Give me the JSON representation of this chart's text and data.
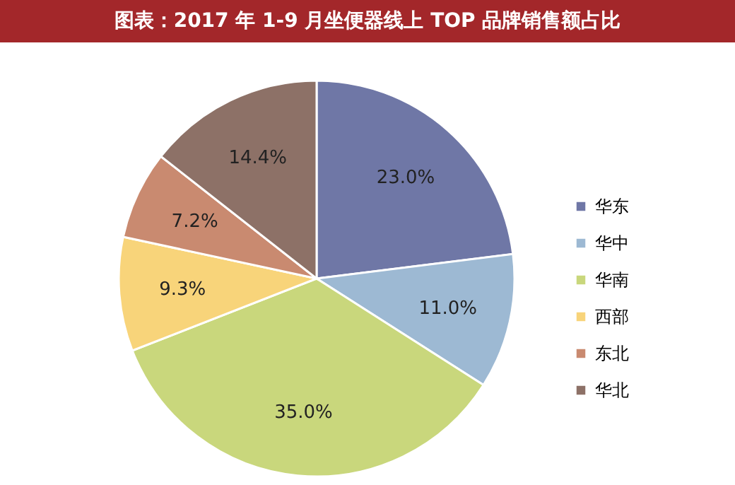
{
  "chart_data": {
    "type": "pie",
    "title": "图表：2017 年 1-9 月坐便器线上 TOP 品牌销售额占比",
    "categories": [
      "华东",
      "华中",
      "华南",
      "西部",
      "东北",
      "华北"
    ],
    "values": [
      23.0,
      11.0,
      35.0,
      9.3,
      7.2,
      14.4
    ],
    "colors": [
      "#6f77a6",
      "#9db9d3",
      "#c9d77c",
      "#f8d47a",
      "#c98a70",
      "#8d7167"
    ],
    "value_labels": [
      "23.0%",
      "11.0%",
      "35.0%",
      "9.3%",
      "7.2%",
      "14.4%"
    ],
    "legend": "right"
  }
}
